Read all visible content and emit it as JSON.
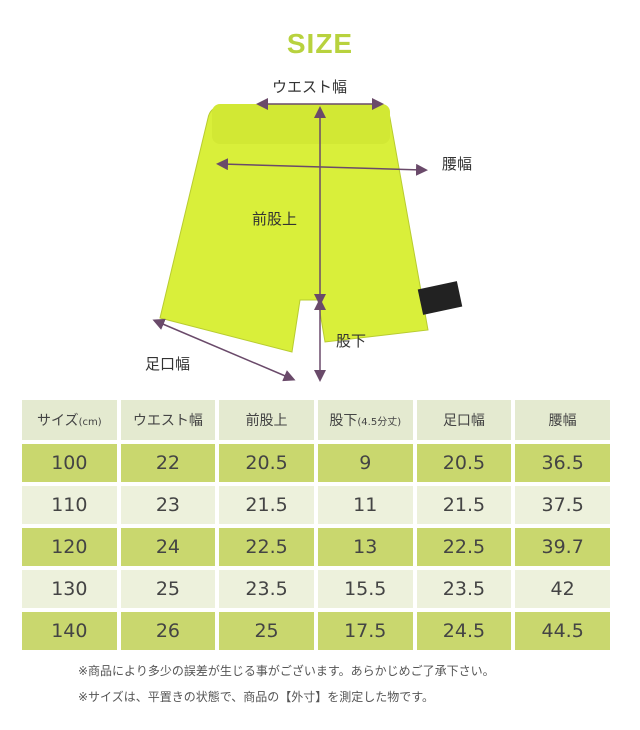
{
  "title": "SIZE",
  "labels": {
    "waist": "ウエスト幅",
    "hip": "腰幅",
    "rise": "前股上",
    "inseam": "股下",
    "hem": "足口幅"
  },
  "colors": {
    "accent": "#b8d23e",
    "shorts": "#d9ef3a"
  },
  "table": {
    "headers": [
      "サイズ",
      "ウエスト幅",
      "前股上",
      "股下",
      "足口幅",
      "腰幅"
    ],
    "header_suffix": {
      "size": "(cm)",
      "inseam": "(4.5分丈)"
    },
    "rows": [
      [
        "100",
        "22",
        "20.5",
        "9",
        "20.5",
        "36.5"
      ],
      [
        "110",
        "23",
        "21.5",
        "11",
        "21.5",
        "37.5"
      ],
      [
        "120",
        "24",
        "22.5",
        "13",
        "22.5",
        "39.7"
      ],
      [
        "130",
        "25",
        "23.5",
        "15.5",
        "23.5",
        "42"
      ],
      [
        "140",
        "26",
        "25",
        "17.5",
        "24.5",
        "44.5"
      ]
    ]
  },
  "notes": [
    "※商品により多少の誤差が生じる事がございます。あらかじめご了承下さい。",
    "※サイズは、平置きの状態で、商品の【外寸】を測定した物です。"
  ]
}
